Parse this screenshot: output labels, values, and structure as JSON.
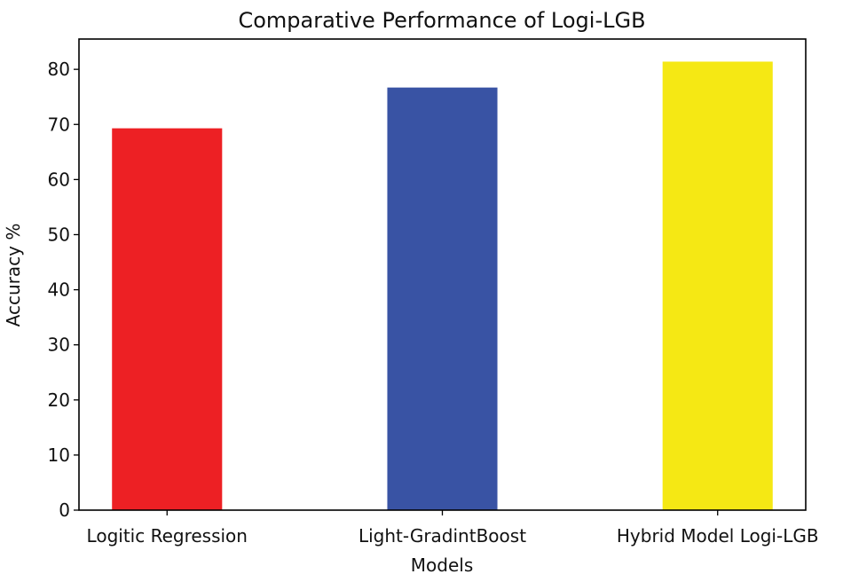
{
  "chart_data": {
    "type": "bar",
    "title": "Comparative Performance of Logi-LGB",
    "xlabel": "Models",
    "ylabel": "Accuracy %",
    "categories": [
      "Logitic Regression",
      "Light-GradintBoost",
      "Hybrid Model Logi-LGB"
    ],
    "values": [
      69.3,
      76.7,
      81.4
    ],
    "colors": [
      "#ed2024",
      "#3953a4",
      "#f5e814"
    ],
    "ylim": [
      0,
      85.5
    ],
    "yticks": [
      0,
      10,
      20,
      30,
      40,
      50,
      60,
      70,
      80
    ],
    "grid": false
  }
}
